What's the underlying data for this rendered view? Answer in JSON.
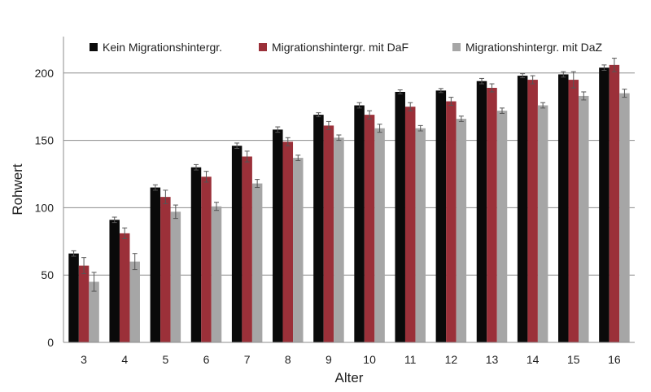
{
  "chart_data": {
    "type": "bar",
    "xlabel": "Alter",
    "ylabel": "Rohwert",
    "ylim": [
      0,
      230
    ],
    "yticks": [
      0,
      50,
      100,
      150,
      200
    ],
    "grid": "horizontal",
    "legend_position": "top",
    "categories": [
      "3",
      "4",
      "5",
      "6",
      "7",
      "8",
      "9",
      "10",
      "11",
      "12",
      "13",
      "14",
      "15",
      "16"
    ],
    "series": [
      {
        "name": "Kein Migrationshintergr.",
        "color": "#0a0a0a",
        "values": [
          66,
          91,
          115,
          130,
          146,
          158,
          169,
          176,
          186,
          187,
          194,
          198,
          199,
          204
        ],
        "errors": [
          2,
          2,
          2,
          2,
          2,
          2,
          1.5,
          2,
          1.5,
          1.5,
          2,
          1.5,
          2,
          2
        ]
      },
      {
        "name": "Migrationshintergr. mit DaF",
        "color": "#9b3039",
        "values": [
          57,
          81,
          108,
          123,
          138,
          149,
          161,
          169,
          175,
          179,
          189,
          195,
          195,
          206
        ],
        "errors": [
          6,
          4,
          5,
          4,
          4,
          3,
          3,
          3,
          3,
          3,
          3,
          3,
          6,
          5
        ]
      },
      {
        "name": "Migrationshintergr. mit DaZ",
        "color": "#a6a6a6",
        "values": [
          45,
          60,
          97,
          101,
          118,
          137,
          152,
          159,
          159,
          166,
          172,
          176,
          183,
          185
        ],
        "errors": [
          7,
          6,
          5,
          3,
          3,
          2,
          2,
          3,
          2,
          2,
          2,
          2,
          3,
          3
        ]
      }
    ]
  }
}
